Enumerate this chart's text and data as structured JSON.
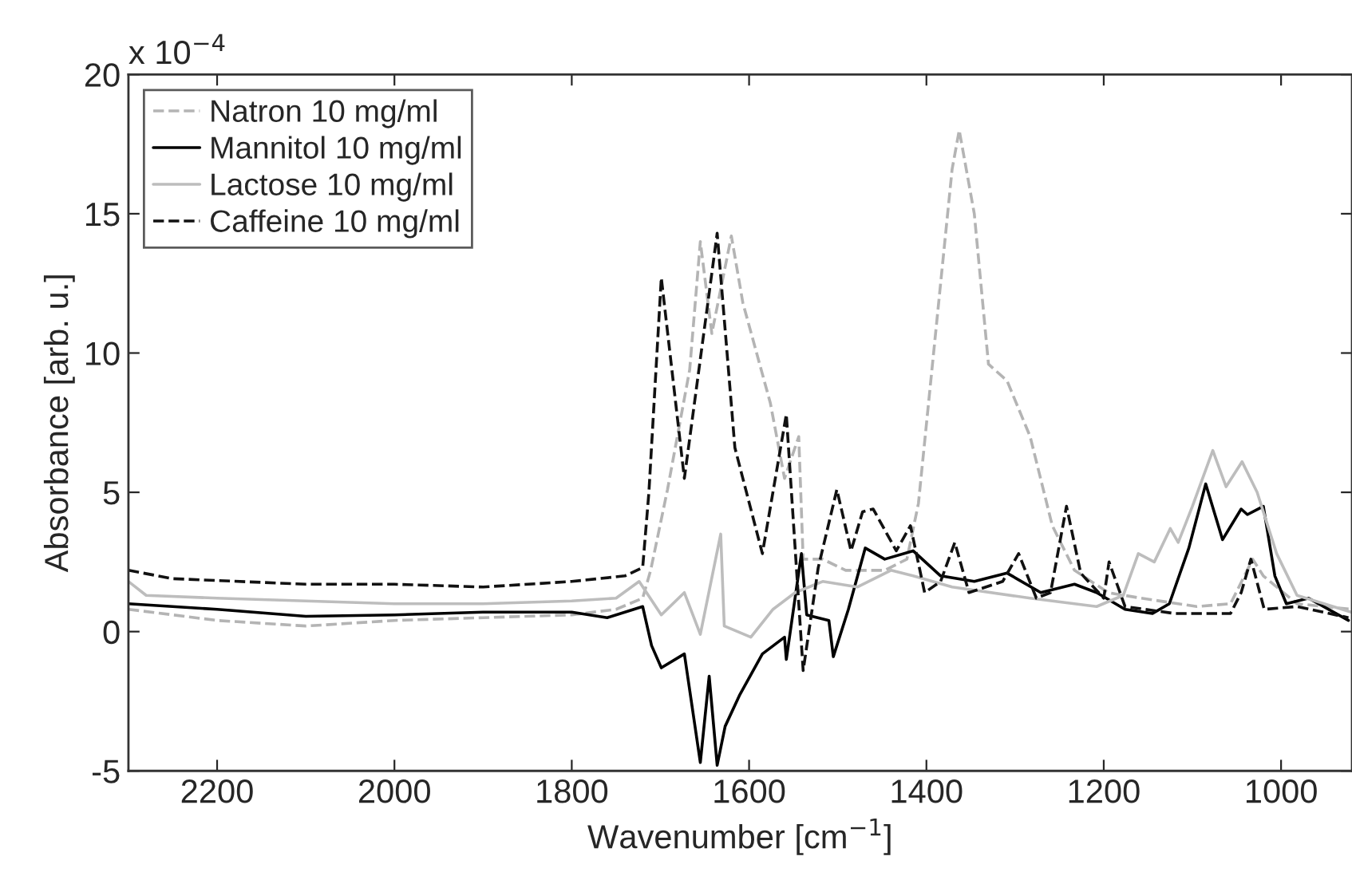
{
  "chart_data": {
    "type": "line",
    "xlabel": "Wavenumber [cm$^{−1}$]",
    "ylabel": "Absorbance [arb. u.]",
    "annotations": [
      "x 10$^{−4}$"
    ],
    "xlim": [
      2300,
      920
    ],
    "xticks": [
      2200,
      2000,
      1800,
      1600,
      1400,
      1200,
      1000
    ],
    "ylim": [
      -5,
      20
    ],
    "yticks": [
      -5,
      0,
      5,
      10,
      15,
      20
    ],
    "grid": false,
    "legend": "top left",
    "series": [
      {
        "name": "Natron 10 mg/ml",
        "color": "#b4b4b4",
        "line_style": "dashed",
        "x": [
          2300,
          2200,
          2100,
          2000,
          1900,
          1800,
          1750,
          1720,
          1711,
          1692,
          1667,
          1655,
          1642,
          1620,
          1607,
          1576,
          1560,
          1544,
          1539,
          1517,
          1491,
          1447,
          1422,
          1409,
          1390,
          1371,
          1363,
          1346,
          1330,
          1309,
          1283,
          1258,
          1233,
          1195,
          1158,
          1095,
          1057,
          1032,
          1020,
          982,
          920
        ],
        "values": [
          0.8,
          0.4,
          0.2,
          0.4,
          0.5,
          0.6,
          0.8,
          1.2,
          2.2,
          5.1,
          9.4,
          14,
          10.7,
          14.2,
          11.8,
          8.2,
          5.5,
          7.0,
          2.6,
          2.6,
          2.2,
          2.2,
          2.6,
          4.6,
          10.6,
          16.6,
          18.0,
          15.0,
          9.6,
          9.0,
          7.0,
          3.8,
          2.2,
          1.4,
          1.2,
          0.9,
          1.0,
          2.6,
          2.0,
          1.0,
          0.8
        ]
      },
      {
        "name": "Mannitol 10 mg/ml",
        "color": "#000000",
        "line_style": "solid",
        "x": [
          2300,
          2200,
          2100,
          2000,
          1900,
          1800,
          1760,
          1730,
          1720,
          1710,
          1699,
          1673,
          1655,
          1645,
          1636,
          1627,
          1611,
          1585,
          1560,
          1558,
          1541,
          1535,
          1510,
          1505,
          1488,
          1469,
          1447,
          1415,
          1384,
          1346,
          1309,
          1271,
          1233,
          1208,
          1176,
          1145,
          1126,
          1104,
          1085,
          1066,
          1045,
          1038,
          1020,
          1007,
          994,
          969,
          924
        ],
        "values": [
          1.0,
          0.8,
          0.55,
          0.6,
          0.7,
          0.7,
          0.5,
          0.8,
          0.9,
          -0.5,
          -1.3,
          -0.8,
          -4.7,
          -1.6,
          -4.8,
          -3.4,
          -2.3,
          -0.8,
          -0.2,
          -1.0,
          2.8,
          0.6,
          0.4,
          -0.9,
          0.8,
          3.0,
          2.6,
          2.9,
          2.0,
          1.8,
          2.1,
          1.4,
          1.7,
          1.4,
          0.8,
          0.65,
          1.0,
          3.0,
          5.3,
          3.3,
          4.4,
          4.2,
          4.5,
          2.0,
          1.0,
          1.2,
          0.4
        ]
      },
      {
        "name": "Lactose 10 mg/ml",
        "color": "#bdbdbd",
        "line_style": "solid",
        "x": [
          2300,
          2280,
          2200,
          2000,
          1900,
          1800,
          1750,
          1724,
          1699,
          1673,
          1655,
          1632,
          1628,
          1598,
          1573,
          1548,
          1517,
          1478,
          1440,
          1415,
          1371,
          1283,
          1208,
          1178,
          1161,
          1143,
          1125,
          1116,
          1100,
          1077,
          1062,
          1044,
          1027,
          1005,
          982,
          921
        ],
        "values": [
          1.8,
          1.3,
          1.2,
          1.0,
          1.0,
          1.1,
          1.2,
          1.8,
          0.6,
          1.4,
          -0.1,
          3.5,
          0.2,
          -0.2,
          0.8,
          1.4,
          1.8,
          1.6,
          2.2,
          2.0,
          1.6,
          1.2,
          0.9,
          1.3,
          2.8,
          2.5,
          3.7,
          3.2,
          4.5,
          6.5,
          5.2,
          6.1,
          5.0,
          2.8,
          1.3,
          0.7
        ]
      },
      {
        "name": "Caffeine 10 mg/ml",
        "color": "#111111",
        "line_style": "dashed",
        "x": [
          2300,
          2250,
          2100,
          2000,
          1900,
          1800,
          1740,
          1720,
          1713,
          1699,
          1673,
          1636,
          1616,
          1585,
          1558,
          1539,
          1522,
          1501,
          1485,
          1472,
          1460,
          1434,
          1418,
          1402,
          1384,
          1368,
          1352,
          1314,
          1296,
          1276,
          1260,
          1242,
          1226,
          1200,
          1194,
          1176,
          1120,
          1057,
          1045,
          1034,
          1019,
          982,
          924
        ],
        "values": [
          2.2,
          1.9,
          1.7,
          1.7,
          1.6,
          1.8,
          2.0,
          2.3,
          5.0,
          12.7,
          5.5,
          14.3,
          6.6,
          2.8,
          7.8,
          -1.4,
          2.3,
          5.1,
          2.9,
          4.3,
          4.4,
          2.9,
          3.8,
          1.4,
          1.8,
          3.2,
          1.4,
          1.8,
          2.8,
          1.2,
          1.4,
          4.5,
          2.1,
          1.2,
          2.5,
          0.9,
          0.65,
          0.65,
          1.4,
          2.6,
          0.8,
          0.9,
          0.5
        ]
      }
    ]
  }
}
